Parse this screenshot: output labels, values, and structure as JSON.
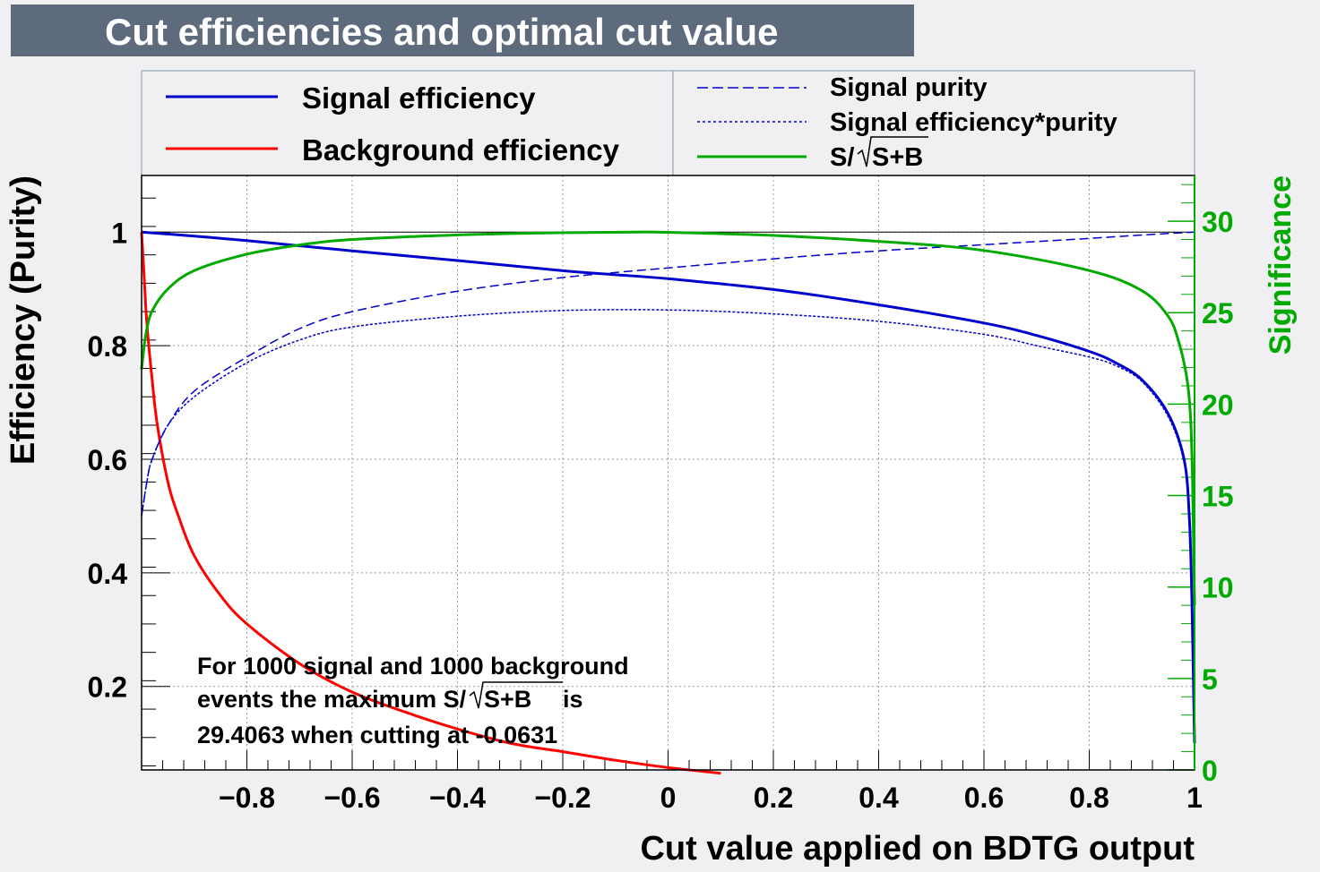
{
  "title": "Cut efficiencies and optimal cut value",
  "chart_data": {
    "type": "line",
    "title": "Cut efficiencies and optimal cut value",
    "xlabel": "Cut value applied on BDTG output",
    "ylabel": "Efficiency (Purity)",
    "y2label": "Significance",
    "xlim": [
      -1,
      1
    ],
    "ylim": [
      0.04,
      1.1
    ],
    "y2lim": [
      0,
      32.5
    ],
    "grid": true,
    "legend_position": "top",
    "x_ticks": [
      "−0.8",
      "−0.6",
      "−0.4",
      "−0.2",
      "0",
      "0.2",
      "0.4",
      "0.6",
      "0.8",
      "1"
    ],
    "x_tick_values": [
      -0.8,
      -0.6,
      -0.4,
      -0.2,
      0,
      0.2,
      0.4,
      0.6,
      0.8,
      1
    ],
    "y_ticks": [
      "0.2",
      "0.4",
      "0.6",
      "0.8",
      "1"
    ],
    "y_tick_values": [
      0.2,
      0.4,
      0.6,
      0.8,
      1
    ],
    "y2_ticks": [
      "0",
      "5",
      "10",
      "15",
      "20",
      "25",
      "30"
    ],
    "y2_tick_values": [
      0,
      5,
      10,
      15,
      20,
      25,
      30
    ],
    "series": [
      {
        "name": "Signal efficiency",
        "color": "#0000cc",
        "style": "solid",
        "axis": "left",
        "x": [
          -1.0,
          -0.9,
          -0.8,
          -0.6,
          -0.4,
          -0.2,
          -0.1,
          0.0,
          0.2,
          0.4,
          0.6,
          0.7,
          0.8,
          0.85,
          0.9,
          0.95,
          0.98,
          0.99,
          0.995,
          1.0
        ],
        "y": [
          1.0,
          0.993,
          0.985,
          0.967,
          0.95,
          0.932,
          0.925,
          0.918,
          0.899,
          0.872,
          0.84,
          0.818,
          0.79,
          0.77,
          0.74,
          0.68,
          0.6,
          0.5,
          0.35,
          0.1
        ]
      },
      {
        "name": "Background efficiency",
        "color": "#ff0000",
        "style": "solid",
        "axis": "left",
        "x": [
          -1.0,
          -0.995,
          -0.99,
          -0.98,
          -0.97,
          -0.95,
          -0.93,
          -0.9,
          -0.85,
          -0.8,
          -0.7,
          -0.6,
          -0.5,
          -0.4,
          -0.3,
          -0.2,
          -0.1,
          0.0,
          0.1
        ],
        "y": [
          1.0,
          0.92,
          0.84,
          0.74,
          0.66,
          0.56,
          0.5,
          0.43,
          0.36,
          0.31,
          0.24,
          0.19,
          0.155,
          0.125,
          0.1,
          0.085,
          0.07,
          0.057,
          0.047
        ]
      },
      {
        "name": "Signal purity",
        "color": "#0000cc",
        "style": "dashed",
        "axis": "left",
        "x": [
          -1.0,
          -0.99,
          -0.98,
          -0.95,
          -0.9,
          -0.8,
          -0.7,
          -0.6,
          -0.4,
          -0.2,
          0.0,
          0.2,
          0.4,
          0.6,
          0.8,
          0.9,
          1.0
        ],
        "y": [
          0.5,
          0.56,
          0.6,
          0.66,
          0.72,
          0.78,
          0.83,
          0.86,
          0.896,
          0.92,
          0.937,
          0.953,
          0.967,
          0.978,
          0.989,
          0.995,
          1.0
        ]
      },
      {
        "name": "Signal efficiency*purity",
        "color": "#0000cc",
        "style": "dotted",
        "axis": "left",
        "x": [
          -1.0,
          -0.99,
          -0.98,
          -0.95,
          -0.9,
          -0.8,
          -0.7,
          -0.6,
          -0.4,
          -0.2,
          0.0,
          0.2,
          0.4,
          0.6,
          0.7,
          0.8,
          0.85,
          0.9,
          0.95,
          0.98,
          0.99,
          1.0
        ],
        "y": [
          0.5,
          0.56,
          0.6,
          0.66,
          0.71,
          0.77,
          0.81,
          0.833,
          0.852,
          0.862,
          0.863,
          0.856,
          0.843,
          0.82,
          0.8,
          0.78,
          0.765,
          0.737,
          0.675,
          0.595,
          0.5,
          0.1
        ]
      },
      {
        "name": "S/√S+B",
        "color": "#00aa00",
        "style": "solid",
        "axis": "right",
        "x": [
          -1.0,
          -0.995,
          -0.99,
          -0.98,
          -0.95,
          -0.9,
          -0.8,
          -0.7,
          -0.6,
          -0.4,
          -0.2,
          -0.0631,
          0.0,
          0.2,
          0.4,
          0.6,
          0.8,
          0.9,
          0.95,
          0.97,
          0.985,
          0.992,
          0.996,
          1.0
        ],
        "y": [
          21.9,
          23.2,
          24.1,
          25.1,
          26.3,
          27.3,
          28.2,
          28.7,
          29.0,
          29.25,
          29.37,
          29.4063,
          29.39,
          29.22,
          28.9,
          28.4,
          27.3,
          26.2,
          24.8,
          23.4,
          21.5,
          19.5,
          16.0,
          9.0
        ]
      }
    ],
    "annotation": {
      "line1": "For 1000 signal and 1000 background",
      "line2_prefix": "events the maximum S/",
      "line2_sqrt": "S+B",
      "line2_suffix": " is",
      "line3": "29.4063 when cutting at -0.0631"
    },
    "max_significance": 29.4063,
    "optimal_cut": -0.0631,
    "legend_left": [
      {
        "label": "Signal efficiency",
        "color": "#0000cc",
        "style": "solid"
      },
      {
        "label": "Background efficiency",
        "color": "#ff0000",
        "style": "solid"
      }
    ],
    "legend_right": [
      {
        "label": "Signal purity",
        "color": "#0000cc",
        "style": "dashed"
      },
      {
        "label": "Signal efficiency*purity",
        "color": "#0000cc",
        "style": "dotted"
      },
      {
        "label_prefix": "S/",
        "label_sqrt": "S+B",
        "color": "#00aa00",
        "style": "solid"
      }
    ]
  }
}
